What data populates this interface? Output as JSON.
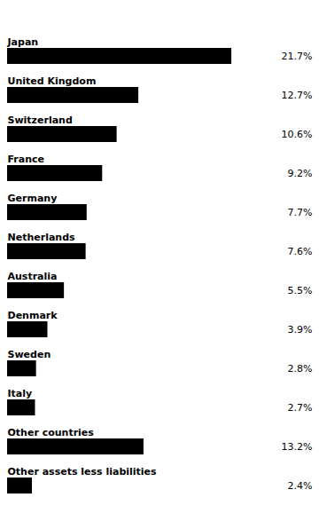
{
  "chart_data": {
    "type": "bar",
    "orientation": "horizontal",
    "categories": [
      "Japan",
      "United Kingdom",
      "Switzerland",
      "France",
      "Germany",
      "Netherlands",
      "Australia",
      "Denmark",
      "Sweden",
      "Italy",
      "Other countries",
      "Other assets less liabilities"
    ],
    "values": [
      21.7,
      12.7,
      10.6,
      9.2,
      7.7,
      7.6,
      5.5,
      3.9,
      2.8,
      2.7,
      13.2,
      2.4
    ],
    "value_labels": [
      "21.7%",
      "12.7%",
      "10.6%",
      "9.2%",
      "7.7%",
      "7.6%",
      "5.5%",
      "3.9%",
      "2.8%",
      "2.7%",
      "13.2%",
      "2.4%"
    ],
    "data_labels": true,
    "color": "#000000",
    "xlim": [
      0,
      29.5
    ],
    "tick_labels": false,
    "grid": false
  }
}
